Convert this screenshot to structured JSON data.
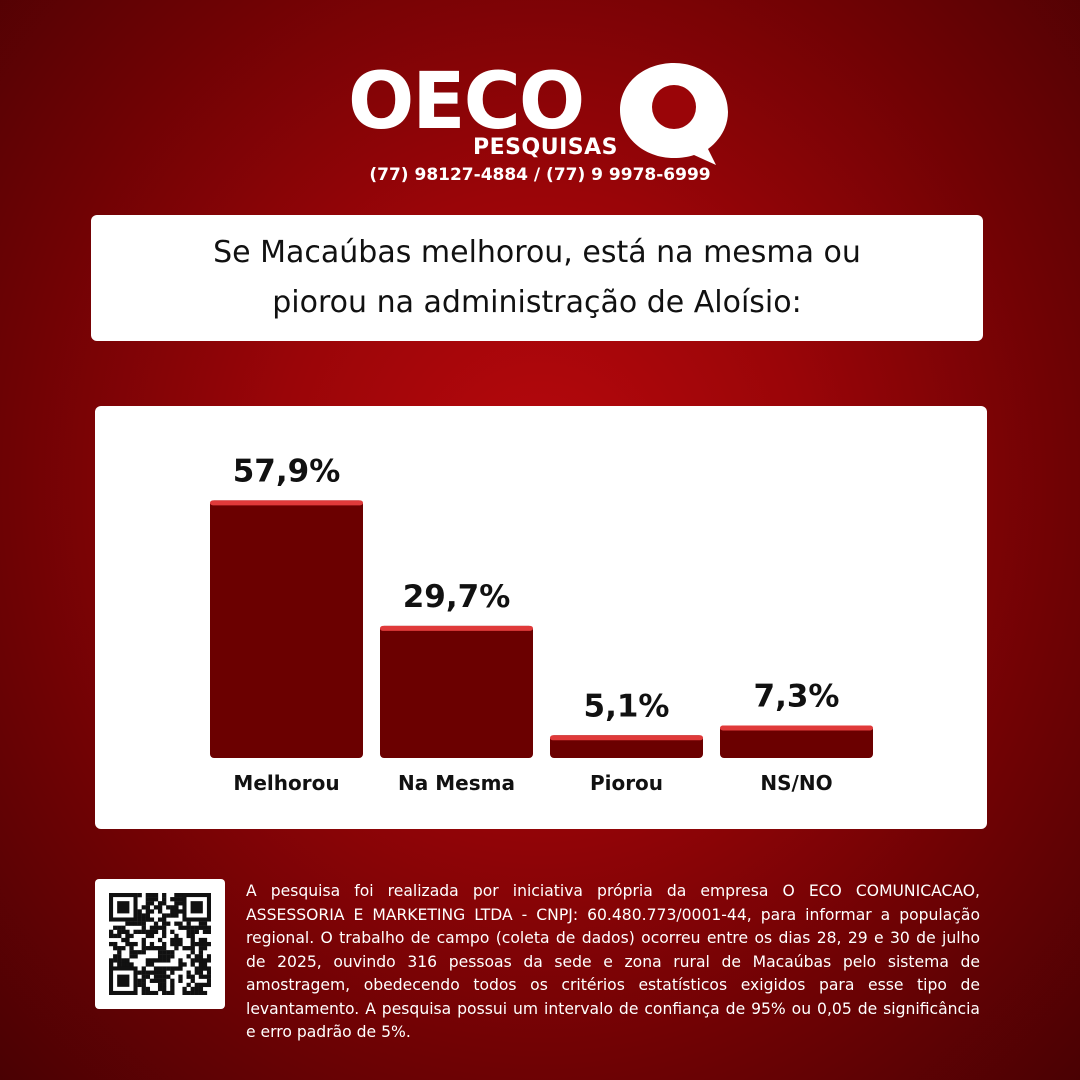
{
  "header": {
    "brand": "OECO",
    "brand_sub": "PESQUISAS",
    "phones": "(77) 98127-4884 / (77) 9 9978-6999"
  },
  "question": {
    "line1": "Se Macaúbas melhorou, está na mesma ou",
    "line2": "piorou na administração de Aloísio:"
  },
  "chart_data": {
    "type": "bar",
    "categories": [
      "Melhorou",
      "Na Mesma",
      "Piorou",
      "NS/NO"
    ],
    "values": [
      57.9,
      29.7,
      5.1,
      7.3
    ],
    "value_labels": [
      "57,9%",
      "29,7%",
      "5,1%",
      "7,3%"
    ],
    "ylim": [
      0,
      60
    ],
    "title": "",
    "xlabel": "",
    "ylabel": "",
    "grid": false,
    "colors": {
      "bar": "#6b0000",
      "bar_top": "#e03a3a"
    }
  },
  "footer": {
    "disclaimer": "A pesquisa foi realizada por iniciativa própria da empresa O ECO COMUNICACAO, ASSESSORIA E MARKETING LTDA - CNPJ: 60.480.773/0001-44, para informar a população regional. O trabalho de campo (coleta de dados) ocorreu entre os dias 28, 29 e 30 de julho de 2025, ouvindo 316 pessoas da sede e zona rural de Macaúbas pelo sistema de amostragem, obedecendo todos os critérios estatísticos exigidos para esse tipo de levantamento. A pesquisa possui um intervalo de confiança de 95% ou 0,05 de significância e erro padrão de 5%."
  }
}
